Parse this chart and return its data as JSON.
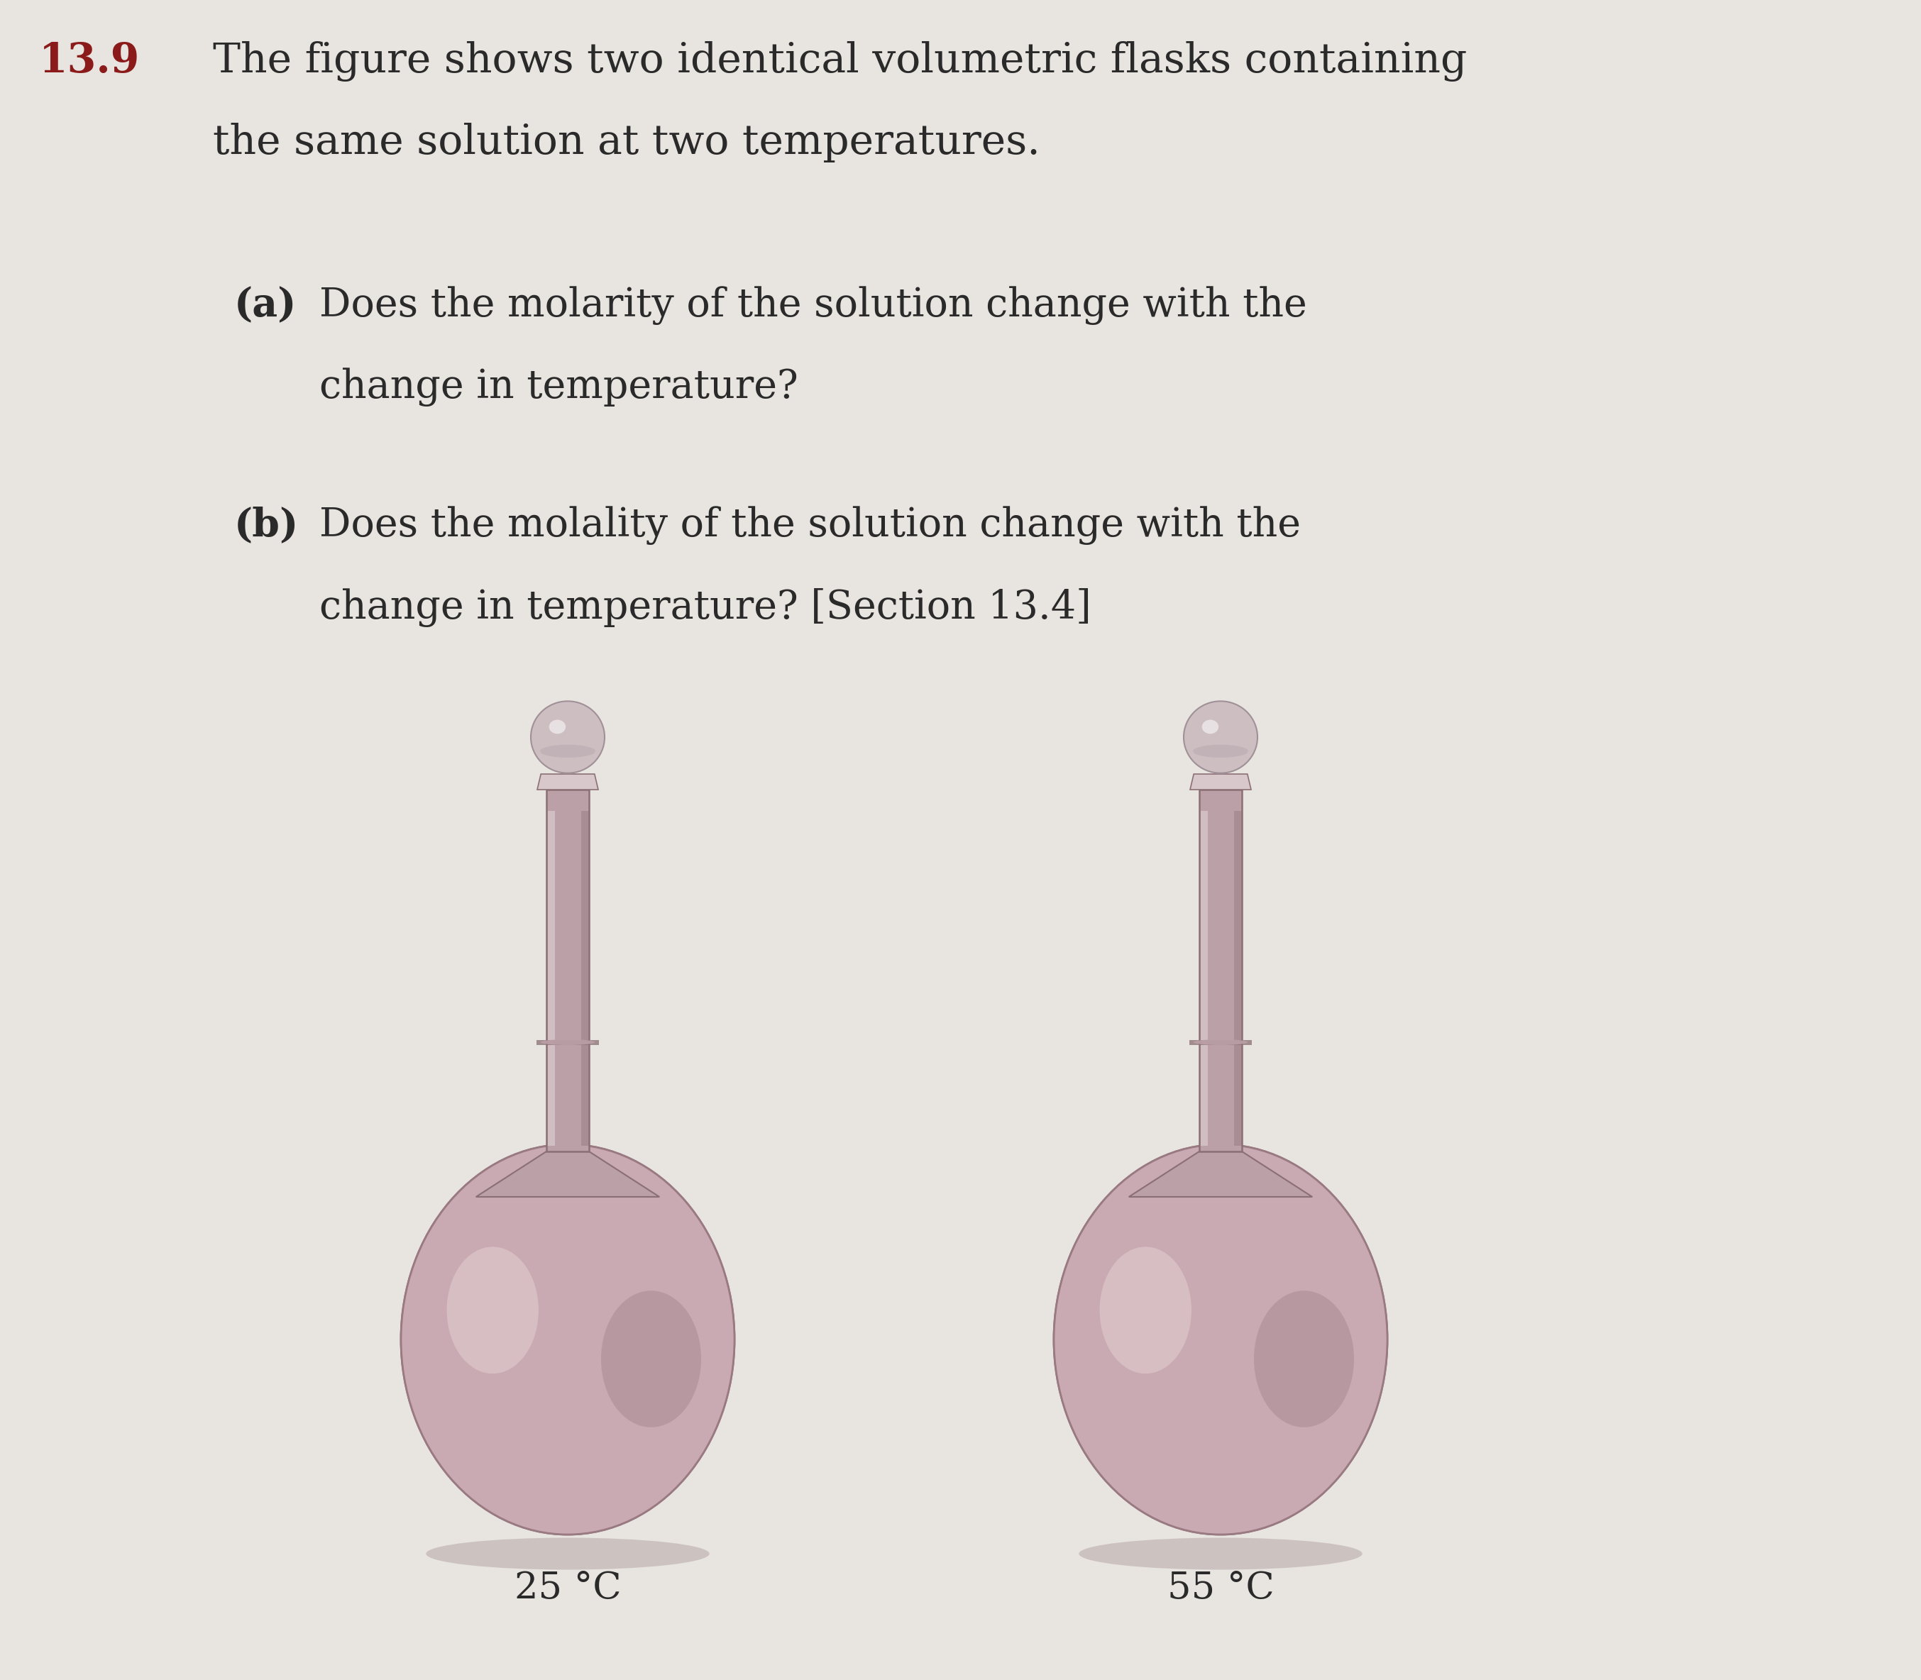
{
  "background_color": "#e8e4df",
  "title_number": "13.9",
  "title_number_color": "#8b1a1a",
  "title_text_line1": "The figure shows two identical volumetric flasks containing",
  "title_text_line2": "the same solution at two temperatures.",
  "question_a_label": "(a)",
  "question_a_text_line1": "Does the molarity of the solution change with the",
  "question_a_text_line2": "change in temperature?",
  "question_b_label": "(b)",
  "question_b_text_line1": "Does the molality of the solution change with the",
  "question_b_text_line2": "change in temperature? [Section 13.4]",
  "flask1_label": "25 °C",
  "flask2_label": "55 °C",
  "flask_body_color": "#c9aab2",
  "flask_body_dark": "#9a7a82",
  "flask_body_light": "#ddc8cc",
  "flask_neck_color": "#bca0a8",
  "flask_neck_dark": "#8a7075",
  "flask_neck_light": "#d8c8cc",
  "flask_stopper_color": "#cdbec2",
  "flask_stopper_dark": "#a09098",
  "flask_shadow_color": "#b0a0a5",
  "text_color": "#2a2a2a",
  "label_fontsize": 38,
  "title_fontsize": 42,
  "question_fontsize": 40
}
